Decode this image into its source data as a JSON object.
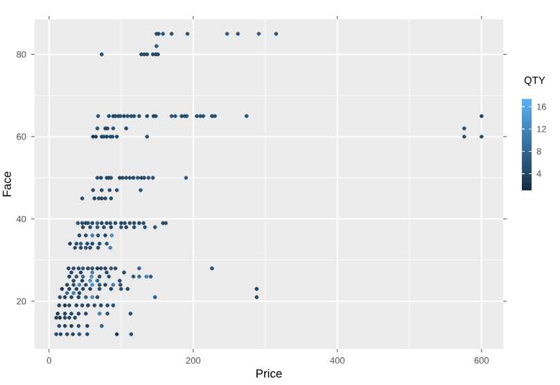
{
  "chart_data": {
    "type": "scatter",
    "xlabel": "Price",
    "ylabel": "Face",
    "clabel": "QTY",
    "xlim": [
      -20,
      630
    ],
    "ylim": [
      8.4,
      88.5
    ],
    "xticks": [
      0,
      200,
      400,
      600
    ],
    "yticks": [
      20,
      40,
      60,
      80
    ],
    "clim": [
      1,
      17.4
    ],
    "cticks": [
      4,
      8,
      12,
      16
    ],
    "grid": true,
    "marker": "circle",
    "x": [
      149,
      152,
      158,
      170,
      192,
      247,
      262,
      291,
      315,
      149,
      73,
      128,
      132,
      136,
      144,
      148,
      151,
      68,
      83,
      89,
      92,
      96,
      99,
      104,
      109,
      114,
      118,
      125,
      136,
      145,
      148,
      170,
      175,
      184,
      188,
      191,
      205,
      210,
      214,
      226,
      230,
      274,
      600,
      67,
      78,
      81,
      89,
      107,
      576,
      61,
      65,
      73,
      76,
      80,
      85,
      88,
      94,
      136,
      576,
      600,
      67,
      72,
      80,
      83,
      86,
      98,
      102,
      107,
      112,
      117,
      123,
      128,
      132,
      138,
      144,
      190,
      61,
      73,
      84,
      94,
      127,
      46,
      63,
      69,
      73,
      78,
      86,
      40,
      46,
      51,
      54,
      60,
      67,
      73,
      80,
      85,
      92,
      100,
      105,
      112,
      118,
      125,
      131,
      158,
      162,
      47,
      57,
      67,
      76,
      86,
      100,
      107,
      118,
      133,
      147,
      42,
      51,
      60,
      68,
      78,
      87,
      29,
      38,
      44,
      53,
      60,
      70,
      80,
      36,
      44,
      51,
      57,
      68,
      85,
      27,
      34,
      41,
      47,
      54,
      60,
      67,
      72,
      78,
      86,
      92,
      125,
      226,
      31,
      44,
      60,
      80,
      104,
      28,
      38,
      47,
      59,
      70,
      83,
      117,
      125,
      135,
      141,
      34,
      46,
      57,
      67,
      98,
      25,
      34,
      42,
      51,
      60,
      70,
      78,
      89,
      99,
      18,
      28,
      38,
      47,
      57,
      70,
      86,
      100,
      109,
      288,
      25,
      34,
      42,
      15,
      22,
      31,
      41,
      51,
      60,
      67,
      147,
      288,
      14,
      22,
      28,
      38,
      46,
      54,
      63,
      72,
      81,
      89,
      12,
      22,
      31,
      41,
      51,
      70,
      81,
      113,
      10,
      15,
      22,
      28,
      36,
      14,
      22,
      31,
      41,
      53,
      73,
      10,
      16,
      25,
      33,
      42,
      53,
      94,
      114
    ],
    "values": [
      85,
      85,
      85,
      85,
      85,
      85,
      85,
      85,
      85,
      82,
      80,
      80,
      80,
      80,
      80,
      80,
      80,
      65,
      65,
      65,
      65,
      65,
      65,
      65,
      65,
      65,
      65,
      65,
      65,
      65,
      65,
      65,
      65,
      65,
      65,
      65,
      65,
      65,
      65,
      65,
      65,
      65,
      65,
      62,
      62,
      62,
      62,
      62,
      62,
      60,
      60,
      60,
      60,
      60,
      60,
      60,
      60,
      60,
      60,
      60,
      50,
      50,
      50,
      50,
      50,
      50,
      50,
      50,
      50,
      50,
      50,
      50,
      50,
      50,
      50,
      50,
      47,
      47,
      47,
      47,
      47,
      45,
      45,
      45,
      45,
      45,
      45,
      39,
      39,
      39,
      39,
      39,
      39,
      39,
      39,
      39,
      39,
      39,
      39,
      39,
      39,
      39,
      39,
      39,
      39,
      38,
      38,
      38,
      38,
      38,
      38,
      38,
      38,
      38,
      38,
      36,
      36,
      36,
      36,
      36,
      36,
      34,
      34,
      34,
      34,
      34,
      34,
      34,
      33,
      33,
      33,
      33,
      33,
      33,
      28,
      28,
      28,
      28,
      28,
      28,
      28,
      28,
      28,
      28,
      28,
      28,
      28,
      27,
      27,
      27,
      27,
      27,
      26,
      26,
      26,
      26,
      26,
      26,
      26,
      26,
      26,
      26,
      25,
      25,
      25,
      25,
      25,
      24,
      24,
      24,
      24,
      24,
      24,
      24,
      24,
      24,
      23,
      23,
      23,
      23,
      23,
      23,
      23,
      23,
      23,
      23,
      22,
      22,
      22,
      21,
      21,
      21,
      21,
      21,
      21,
      21,
      21,
      21,
      19,
      19,
      19,
      19,
      19,
      19,
      19,
      19,
      19,
      19,
      17,
      17,
      17,
      17,
      17,
      17,
      17,
      17,
      16,
      16,
      16,
      16,
      16,
      14,
      14,
      14,
      14,
      14,
      14,
      12,
      12,
      12,
      12,
      12,
      12,
      12,
      12
    ],
    "cvalues": [
      6,
      5,
      6,
      5,
      6,
      7,
      6,
      7,
      6,
      6,
      5,
      5,
      5,
      5,
      5,
      5,
      5,
      6,
      5,
      4,
      5,
      5,
      6,
      5,
      6,
      5,
      6,
      6,
      5,
      4,
      5,
      6,
      6,
      5,
      6,
      6,
      5,
      6,
      6,
      5,
      6,
      6,
      4,
      6,
      5,
      5,
      6,
      5,
      6,
      3,
      4,
      5,
      5,
      4,
      6,
      5,
      4,
      6,
      6,
      5,
      6,
      4,
      5,
      5,
      6,
      4,
      5,
      5,
      6,
      4,
      6,
      5,
      5,
      6,
      6,
      7,
      5,
      5,
      5,
      5,
      6,
      5,
      4,
      5,
      5,
      5,
      5,
      6,
      5,
      4,
      6,
      5,
      8,
      4,
      5,
      6,
      5,
      4,
      5,
      6,
      5,
      4,
      6,
      5,
      6,
      4,
      5,
      6,
      5,
      4,
      6,
      4,
      5,
      6,
      6,
      5,
      5,
      12,
      6,
      5,
      14,
      4,
      5,
      8,
      5,
      4,
      5,
      6,
      5,
      4,
      6,
      5,
      5,
      12,
      4,
      5,
      4,
      6,
      4,
      5,
      3,
      5,
      4,
      6,
      4,
      8,
      5,
      5,
      4,
      12,
      5,
      5,
      4,
      6,
      9,
      14,
      5,
      6,
      6,
      9,
      12,
      7,
      5,
      4,
      14,
      9,
      5,
      4,
      5,
      12,
      5,
      14,
      6,
      4,
      12,
      5,
      3,
      4,
      4,
      5,
      4,
      5,
      4,
      6,
      5,
      4,
      9,
      12,
      5,
      5,
      4,
      5,
      4,
      8,
      14,
      5,
      8,
      5,
      4,
      3,
      5,
      4,
      5,
      4,
      5,
      4,
      5,
      6,
      3,
      4,
      5,
      4,
      5,
      12,
      6,
      5,
      4,
      3,
      4,
      5,
      4,
      5,
      4,
      4,
      5,
      4,
      8,
      5,
      4,
      5,
      4,
      5,
      5,
      2,
      5
    ]
  }
}
